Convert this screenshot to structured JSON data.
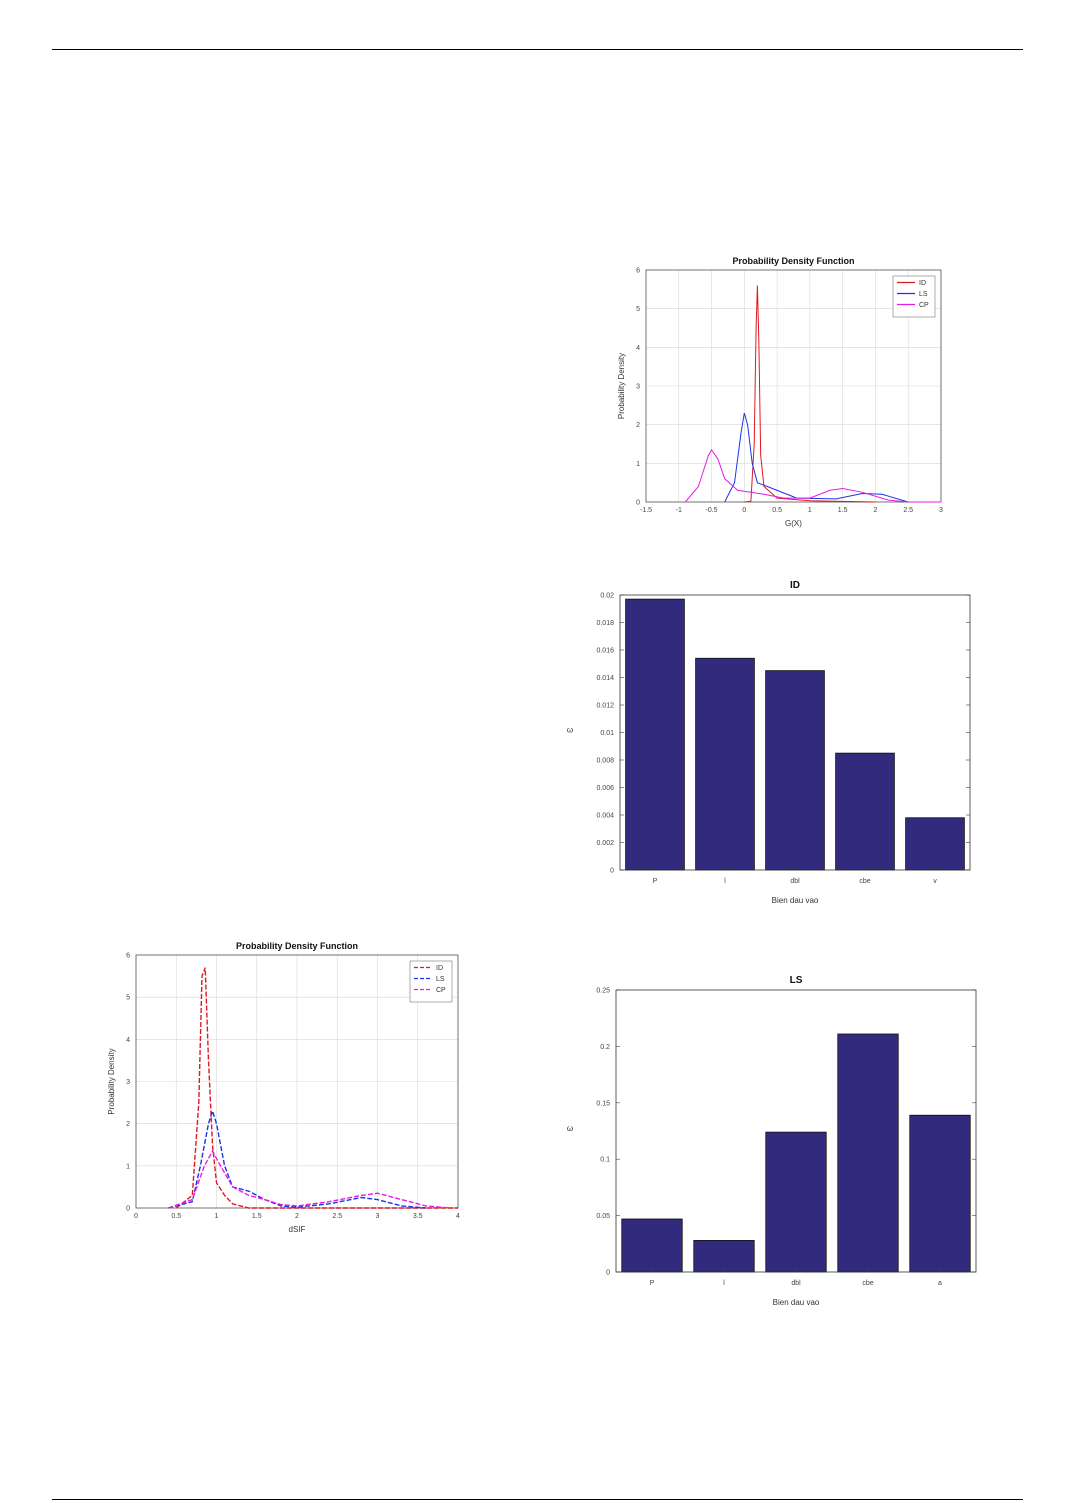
{
  "colors": {
    "ID": "#e0191f",
    "LS": "#1c33e6",
    "CP": "#e61ce6",
    "bar": "#312a7d",
    "grid": "#d8d8d8"
  },
  "chart_data": [
    {
      "type": "line",
      "title": "Probability Density Function",
      "xlabel": "G(X)",
      "ylabel": "Probability Density",
      "xlim": [
        -1.5,
        3
      ],
      "ylim": [
        0,
        6
      ],
      "xticks": [
        "-1.5",
        "-1",
        "-0.5",
        "0",
        "0.5",
        "1",
        "1.5",
        "2",
        "2.5",
        "3"
      ],
      "yticks": [
        "0",
        "1",
        "2",
        "3",
        "4",
        "5",
        "6"
      ],
      "grid": true,
      "legend": "top-right",
      "series": [
        {
          "name": "ID",
          "points": [
            [
              0,
              0
            ],
            [
              0.1,
              0.02
            ],
            [
              0.15,
              1.5
            ],
            [
              0.18,
              4.5
            ],
            [
              0.2,
              5.6
            ],
            [
              0.22,
              4.2
            ],
            [
              0.25,
              1.2
            ],
            [
              0.3,
              0.4
            ],
            [
              0.5,
              0.1
            ],
            [
              1.0,
              0.03
            ],
            [
              2.0,
              0
            ]
          ]
        },
        {
          "name": "LS",
          "points": [
            [
              -0.3,
              0
            ],
            [
              -0.15,
              0.5
            ],
            [
              -0.05,
              1.8
            ],
            [
              0.0,
              2.3
            ],
            [
              0.05,
              2.0
            ],
            [
              0.12,
              1.0
            ],
            [
              0.2,
              0.5
            ],
            [
              0.35,
              0.4
            ],
            [
              0.5,
              0.3
            ],
            [
              0.8,
              0.1
            ],
            [
              1.4,
              0.08
            ],
            [
              1.8,
              0.22
            ],
            [
              2.1,
              0.2
            ],
            [
              2.5,
              0
            ],
            [
              3.0,
              0
            ]
          ]
        },
        {
          "name": "CP",
          "points": [
            [
              -0.9,
              0
            ],
            [
              -0.7,
              0.4
            ],
            [
              -0.55,
              1.2
            ],
            [
              -0.5,
              1.35
            ],
            [
              -0.4,
              1.1
            ],
            [
              -0.3,
              0.6
            ],
            [
              -0.1,
              0.3
            ],
            [
              0.1,
              0.25
            ],
            [
              0.3,
              0.2
            ],
            [
              0.6,
              0.1
            ],
            [
              1.0,
              0.1
            ],
            [
              1.3,
              0.3
            ],
            [
              1.5,
              0.35
            ],
            [
              1.8,
              0.25
            ],
            [
              2.2,
              0.05
            ],
            [
              2.5,
              0
            ],
            [
              3.0,
              0
            ]
          ]
        }
      ]
    },
    {
      "type": "bar",
      "title": "ID",
      "xlabel": "Bien dau vao",
      "ylabel": "ω",
      "categories": [
        "P",
        "l",
        "dbl",
        "cbe",
        "v"
      ],
      "values": [
        0.0197,
        0.0154,
        0.0145,
        0.0085,
        0.0038
      ],
      "ylim": [
        0,
        0.02
      ],
      "yticks": [
        "0",
        "0.002",
        "0.004",
        "0.006",
        "0.008",
        "0.01",
        "0.012",
        "0.014",
        "0.016",
        "0.018",
        "0.02"
      ],
      "grid": false
    },
    {
      "type": "line",
      "title": "Probability Density Function",
      "xlabel": "dSIF",
      "ylabel": "Probability Density",
      "xlim": [
        0,
        4
      ],
      "ylim": [
        0,
        6
      ],
      "xticks": [
        "0",
        "0.5",
        "1",
        "1.5",
        "2",
        "2.5",
        "3",
        "3.5",
        "4"
      ],
      "yticks": [
        "0",
        "1",
        "2",
        "3",
        "4",
        "5",
        "6"
      ],
      "grid": true,
      "legend": "top-right",
      "series": [
        {
          "name": "ID",
          "points": [
            [
              0.5,
              0
            ],
            [
              0.7,
              0.3
            ],
            [
              0.78,
              2.5
            ],
            [
              0.82,
              5.5
            ],
            [
              0.86,
              5.7
            ],
            [
              0.9,
              3.5
            ],
            [
              0.95,
              1.5
            ],
            [
              1.0,
              0.6
            ],
            [
              1.1,
              0.3
            ],
            [
              1.2,
              0.1
            ],
            [
              1.4,
              0
            ],
            [
              4,
              0
            ]
          ]
        },
        {
          "name": "LS",
          "points": [
            [
              0.4,
              0
            ],
            [
              0.7,
              0.15
            ],
            [
              0.8,
              1.0
            ],
            [
              0.9,
              2.0
            ],
            [
              0.95,
              2.3
            ],
            [
              1.0,
              2.0
            ],
            [
              1.1,
              1.0
            ],
            [
              1.2,
              0.5
            ],
            [
              1.4,
              0.4
            ],
            [
              1.6,
              0.2
            ],
            [
              1.8,
              0.05
            ],
            [
              2.0,
              0.02
            ],
            [
              2.4,
              0.1
            ],
            [
              2.8,
              0.25
            ],
            [
              3.0,
              0.2
            ],
            [
              3.3,
              0.05
            ],
            [
              3.6,
              0
            ]
          ]
        },
        {
          "name": "CP",
          "points": [
            [
              0.4,
              0
            ],
            [
              0.7,
              0.2
            ],
            [
              0.85,
              1.0
            ],
            [
              0.95,
              1.35
            ],
            [
              1.05,
              1.0
            ],
            [
              1.2,
              0.5
            ],
            [
              1.4,
              0.3
            ],
            [
              1.6,
              0.2
            ],
            [
              1.8,
              0.08
            ],
            [
              2.0,
              0.05
            ],
            [
              2.4,
              0.15
            ],
            [
              2.8,
              0.3
            ],
            [
              3.0,
              0.35
            ],
            [
              3.3,
              0.2
            ],
            [
              3.6,
              0.05
            ],
            [
              3.9,
              0
            ]
          ]
        }
      ]
    },
    {
      "type": "bar",
      "title": "LS",
      "xlabel": "Bien dau vao",
      "ylabel": "ω",
      "categories": [
        "P",
        "l",
        "dbl",
        "cbe",
        "a"
      ],
      "values": [
        0.047,
        0.028,
        0.124,
        0.211,
        0.139
      ],
      "ylim": [
        0,
        0.25
      ],
      "yticks": [
        "0",
        "0.05",
        "0.1",
        "0.15",
        "0.2",
        "0.25"
      ],
      "grid": false
    }
  ]
}
